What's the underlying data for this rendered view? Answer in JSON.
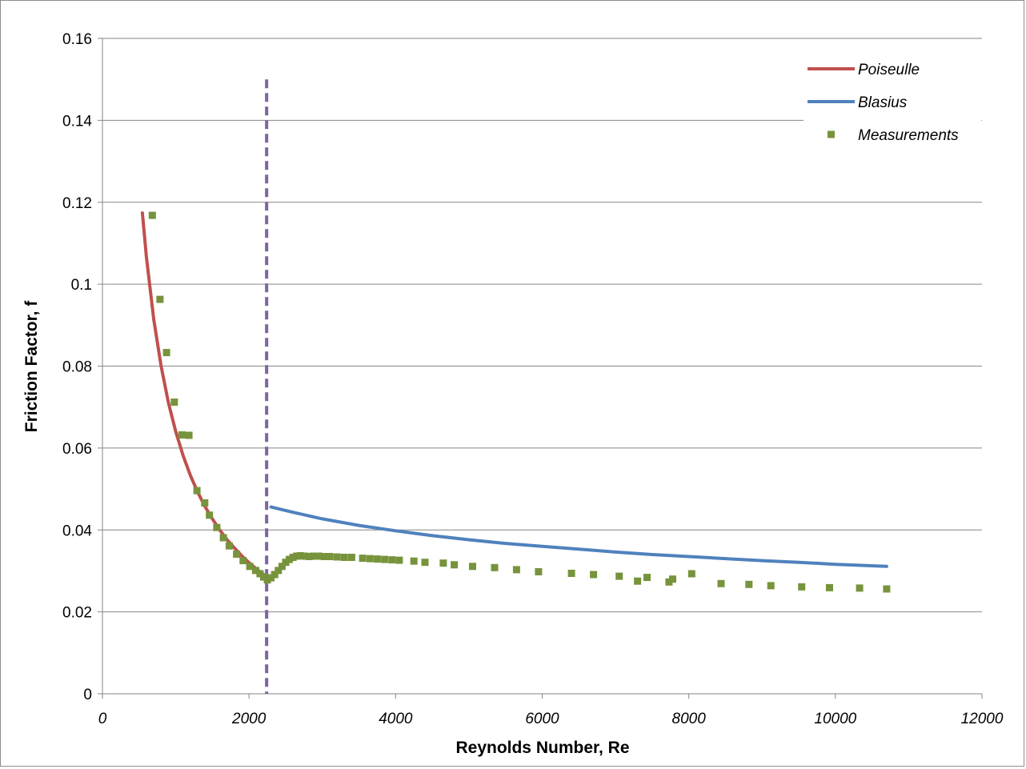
{
  "chart_data": {
    "type": "line",
    "title": "",
    "xlabel": "Reynolds Number, Re",
    "ylabel": "Friction Factor, f",
    "xlim": [
      0,
      12000
    ],
    "ylim": [
      0,
      0.16
    ],
    "x_ticks": [
      0,
      2000,
      4000,
      6000,
      8000,
      10000,
      12000
    ],
    "x_tick_labels": [
      "0",
      "2000",
      "4000",
      "6000",
      "8000",
      "10000",
      "12000"
    ],
    "y_ticks": [
      0,
      0.02,
      0.04,
      0.06,
      0.08,
      0.1,
      0.12,
      0.14,
      0.16
    ],
    "y_tick_labels": [
      "0",
      "0.02",
      "0.04",
      "0.06",
      "0.08",
      "0.1",
      "0.12",
      "0.14",
      "0.16"
    ],
    "grid": "horizontal",
    "legend_position": "top-right",
    "transition_marker": {
      "x": 2240,
      "y_range": [
        0,
        0.15
      ],
      "style": "dashed",
      "color": "#8064a2"
    },
    "series": [
      {
        "name": "Poiseulle",
        "kind": "line",
        "color": "#c0504d",
        "x": [
          545,
          600,
          700,
          800,
          900,
          1000,
          1100,
          1200,
          1300,
          1400,
          1500,
          1600,
          1700,
          1800,
          1900,
          2000,
          2100,
          2200,
          2240
        ],
        "y": [
          0.1174,
          0.1067,
          0.0914,
          0.08,
          0.0711,
          0.064,
          0.0582,
          0.0533,
          0.0492,
          0.0457,
          0.0427,
          0.04,
          0.0376,
          0.0356,
          0.0337,
          0.032,
          0.0305,
          0.0291,
          0.0286
        ]
      },
      {
        "name": "Blasius",
        "kind": "line",
        "color": "#4f81bd",
        "x": [
          2300,
          2600,
          3000,
          3500,
          4000,
          4500,
          5000,
          5500,
          6000,
          6500,
          7000,
          7500,
          8000,
          8500,
          9000,
          9500,
          10000,
          10700
        ],
        "y": [
          0.0456,
          0.0443,
          0.0427,
          0.0411,
          0.0398,
          0.0386,
          0.0376,
          0.0367,
          0.036,
          0.0353,
          0.0346,
          0.034,
          0.0335,
          0.033,
          0.0325,
          0.0321,
          0.0316,
          0.0311
        ]
      },
      {
        "name": "Measurements",
        "kind": "scatter",
        "color": "#77933c",
        "x": [
          680,
          785,
          875,
          980,
          1085,
          1180,
          1290,
          1395,
          1460,
          1560,
          1650,
          1730,
          1830,
          1920,
          2010,
          2090,
          2150,
          2200,
          2250,
          2300,
          2350,
          2400,
          2450,
          2500,
          2550,
          2600,
          2650,
          2700,
          2760,
          2820,
          2880,
          2950,
          3030,
          3100,
          3200,
          3300,
          3400,
          3550,
          3650,
          3750,
          3850,
          3950,
          4050,
          4250,
          4400,
          4650,
          4800,
          5050,
          5350,
          5650,
          5950,
          6400,
          6700,
          7050,
          7300,
          7430,
          7730,
          7780,
          8040,
          8440,
          8820,
          9120,
          9540,
          9920,
          10330,
          10700
        ],
        "y": [
          0.1168,
          0.0963,
          0.0833,
          0.0712,
          0.0632,
          0.0631,
          0.0496,
          0.0466,
          0.0436,
          0.0406,
          0.0381,
          0.0361,
          0.0341,
          0.0325,
          0.0311,
          0.0301,
          0.0293,
          0.0285,
          0.0278,
          0.0283,
          0.0291,
          0.0301,
          0.0311,
          0.0321,
          0.0328,
          0.0333,
          0.0336,
          0.0337,
          0.0336,
          0.0335,
          0.0336,
          0.0336,
          0.0335,
          0.0335,
          0.0334,
          0.0333,
          0.0333,
          0.0331,
          0.033,
          0.0329,
          0.0328,
          0.0327,
          0.0326,
          0.0324,
          0.0321,
          0.0319,
          0.0315,
          0.0311,
          0.0308,
          0.0303,
          0.0298,
          0.0294,
          0.0291,
          0.0287,
          0.0275,
          0.0284,
          0.0273,
          0.028,
          0.0293,
          0.0269,
          0.0267,
          0.0264,
          0.0261,
          0.0259,
          0.0258,
          0.0256
        ]
      }
    ]
  }
}
